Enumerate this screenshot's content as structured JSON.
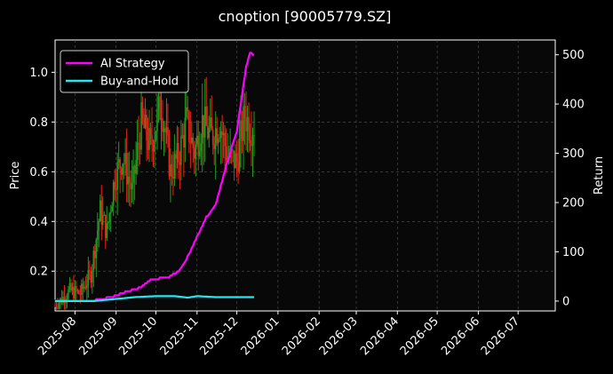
{
  "chart_data": {
    "type": "candlestick+line",
    "title": "cnoption [90005779.SZ]",
    "ylabel_left": "Price",
    "ylabel_right": "Return",
    "ylim_left": [
      0.04,
      1.13
    ],
    "ylim_right": [
      -20,
      530
    ],
    "left_ticks": [
      "0.2",
      "0.4",
      "0.6",
      "0.8",
      "1.0"
    ],
    "left_tick_values": [
      0.2,
      0.4,
      0.6,
      0.8,
      1.0
    ],
    "right_ticks": [
      "0",
      "100",
      "200",
      "300",
      "400",
      "500"
    ],
    "right_tick_values": [
      0,
      100,
      200,
      300,
      400,
      500
    ],
    "xlim": [
      "2025-07-17",
      "2026-07-29"
    ],
    "x_ticks": [
      "2025-08",
      "2025-09",
      "2025-10",
      "2025-11",
      "2025-12",
      "2026-01",
      "2026-02",
      "2026-03",
      "2026-04",
      "2026-05",
      "2026-06",
      "2026-07"
    ],
    "x_tick_dates": [
      "2025-08-01",
      "2025-09-01",
      "2025-10-01",
      "2025-11-01",
      "2025-12-01",
      "2026-01-01",
      "2026-02-01",
      "2026-03-01",
      "2026-04-01",
      "2026-05-01",
      "2026-06-01",
      "2026-07-01"
    ],
    "grid": true,
    "legend_position": "top-left",
    "colors": {
      "up": "#1e9c1e",
      "down": "#e8231a",
      "strategy": "#ff00ff",
      "buyhold": "#22e8f0",
      "grid": "#555555",
      "background": "#000000"
    },
    "price_anchors": [
      [
        "2025-07-17",
        0.06
      ],
      [
        "2025-07-28",
        0.12
      ],
      [
        "2025-08-05",
        0.11
      ],
      [
        "2025-08-13",
        0.19
      ],
      [
        "2025-08-20",
        0.44
      ],
      [
        "2025-08-25",
        0.36
      ],
      [
        "2025-08-31",
        0.58
      ],
      [
        "2025-09-06",
        0.66
      ],
      [
        "2025-09-13",
        0.52
      ],
      [
        "2025-09-20",
        0.8
      ],
      [
        "2025-09-27",
        0.7
      ],
      [
        "2025-10-05",
        0.88
      ],
      [
        "2025-10-12",
        0.6
      ],
      [
        "2025-10-18",
        0.66
      ],
      [
        "2025-10-24",
        0.8
      ],
      [
        "2025-10-30",
        0.68
      ],
      [
        "2025-11-05",
        0.8
      ],
      [
        "2025-11-12",
        0.74
      ],
      [
        "2025-11-18",
        0.8
      ],
      [
        "2025-11-24",
        0.66
      ],
      [
        "2025-12-01",
        0.64
      ],
      [
        "2025-12-07",
        0.83
      ],
      [
        "2025-12-11",
        0.78
      ],
      [
        "2025-12-14",
        0.79
      ]
    ],
    "series": [
      {
        "name": "AI Strategy",
        "points": [
          [
            "2025-07-17",
            0
          ],
          [
            "2025-08-10",
            0
          ],
          [
            "2025-08-20",
            3
          ],
          [
            "2025-08-31",
            10
          ],
          [
            "2025-09-10",
            20
          ],
          [
            "2025-09-20",
            28
          ],
          [
            "2025-09-28",
            44
          ],
          [
            "2025-10-10",
            48
          ],
          [
            "2025-10-18",
            60
          ],
          [
            "2025-10-25",
            90
          ],
          [
            "2025-11-01",
            130
          ],
          [
            "2025-11-08",
            170
          ],
          [
            "2025-11-15",
            195
          ],
          [
            "2025-11-20",
            245
          ],
          [
            "2025-11-23",
            275
          ],
          [
            "2025-12-01",
            345
          ],
          [
            "2025-12-05",
            420
          ],
          [
            "2025-12-08",
            475
          ],
          [
            "2025-12-11",
            505
          ],
          [
            "2025-12-14",
            500
          ]
        ]
      },
      {
        "name": "Buy-and-Hold",
        "points": [
          [
            "2025-07-17",
            0
          ],
          [
            "2025-08-15",
            0
          ],
          [
            "2025-08-31",
            4
          ],
          [
            "2025-09-15",
            8
          ],
          [
            "2025-10-01",
            10
          ],
          [
            "2025-10-15",
            10
          ],
          [
            "2025-10-25",
            7
          ],
          [
            "2025-11-01",
            10
          ],
          [
            "2025-11-15",
            8
          ],
          [
            "2025-12-01",
            8
          ],
          [
            "2025-12-14",
            8
          ]
        ]
      }
    ]
  }
}
